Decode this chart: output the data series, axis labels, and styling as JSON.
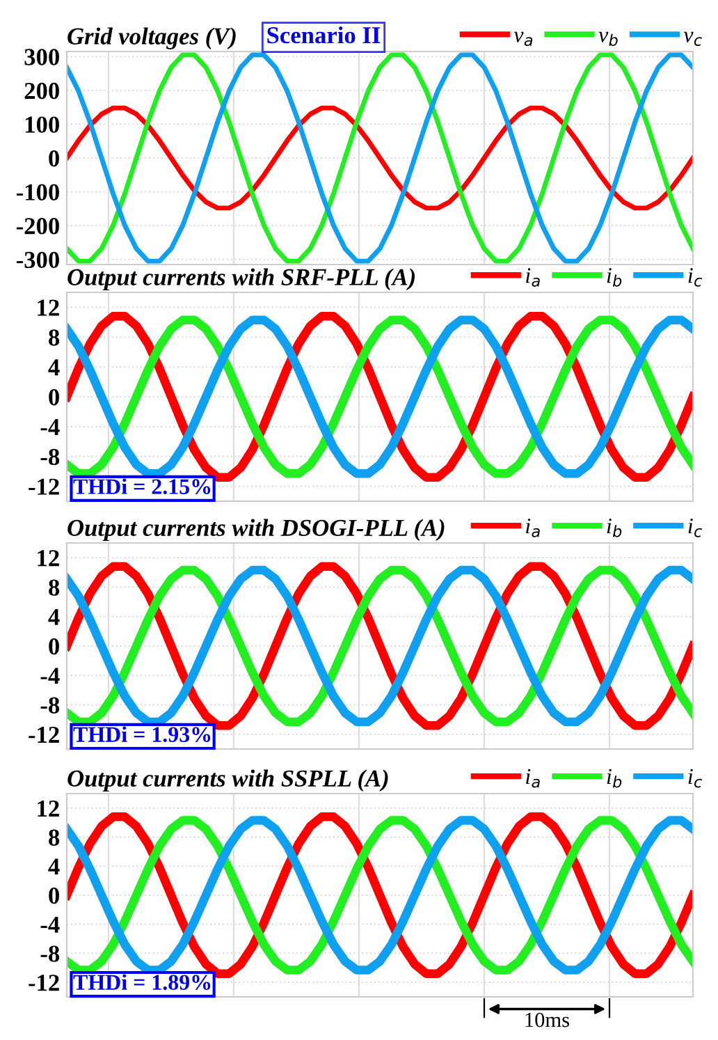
{
  "chart_data": [
    {
      "type": "line",
      "title": "Grid voltages (V)",
      "categories": [
        null,
        null,
        null,
        null,
        null,
        null,
        null,
        null,
        null,
        null,
        null,
        null,
        null,
        null,
        null,
        null,
        null,
        null,
        null,
        null,
        null,
        null,
        null,
        null,
        null,
        null,
        null,
        null,
        null,
        null,
        null,
        null,
        null,
        null,
        null,
        null,
        null,
        null,
        null,
        null,
        null,
        null,
        null,
        null,
        null,
        null,
        null,
        null,
        null,
        null,
        null,
        null,
        null,
        null,
        null
      ],
      "series": [
        {
          "name": "v$_{a}$",
          "color": "#ff0000",
          "values": [
            0,
            51,
            96,
            130,
            148,
            148,
            130,
            96,
            51,
            0,
            -51,
            -96,
            -130,
            -148,
            -148,
            -130,
            -96,
            -51,
            0,
            51,
            96,
            130,
            148,
            148,
            130,
            96,
            51,
            0,
            -51,
            -96,
            -130,
            -148,
            -148,
            -130,
            -96,
            -51,
            0,
            51,
            96,
            130,
            148,
            148,
            130,
            96,
            51,
            0,
            -51,
            -96,
            -130,
            -148,
            -148,
            -130,
            -96,
            -51,
            0
          ]
        },
        {
          "name": "v$_{b}$",
          "color": "#22ee22",
          "values": [
            -268,
            -305,
            -305,
            -268,
            -199,
            -106,
            0,
            106,
            199,
            268,
            305,
            305,
            268,
            199,
            106,
            0,
            -106,
            -199,
            -268,
            -305,
            -305,
            -268,
            -199,
            -106,
            0,
            106,
            199,
            268,
            305,
            305,
            268,
            199,
            106,
            0,
            -106,
            -199,
            -268,
            -305,
            -305,
            -268,
            -199,
            -106,
            0,
            106,
            199,
            268,
            305,
            305,
            268,
            199,
            106,
            0,
            -106,
            -199,
            -268
          ]
        },
        {
          "name": "v$_{c}$",
          "color": "#10a0f0",
          "values": [
            268,
            199,
            106,
            0,
            -106,
            -199,
            -268,
            -305,
            -305,
            -268,
            -199,
            -106,
            0,
            106,
            199,
            268,
            305,
            305,
            268,
            199,
            106,
            0,
            -106,
            -199,
            -268,
            -305,
            -305,
            -268,
            -199,
            -106,
            0,
            106,
            199,
            268,
            305,
            305,
            268,
            199,
            106,
            0,
            -106,
            -199,
            -268,
            -305,
            -305,
            -268,
            -199,
            -106,
            0,
            106,
            199,
            268,
            305,
            305,
            268
          ]
        }
      ],
      "ylim": [
        -315,
        315
      ],
      "yticks": [
        -300,
        -200,
        -100,
        0,
        100,
        200,
        300
      ],
      "grid": true,
      "legend": "top right",
      "annotations": [
        "Scenario II"
      ]
    },
    {
      "type": "line",
      "title": "Output currents with SRF-PLL (A)",
      "categories": [
        null,
        null,
        null,
        null,
        null,
        null,
        null,
        null,
        null,
        null,
        null,
        null,
        null,
        null,
        null,
        null,
        null,
        null,
        null,
        null,
        null,
        null,
        null,
        null,
        null,
        null,
        null,
        null,
        null,
        null,
        null,
        null,
        null,
        null,
        null,
        null,
        null,
        null,
        null,
        null,
        null,
        null,
        null,
        null,
        null,
        null,
        null,
        null,
        null,
        null,
        null,
        null,
        null,
        null,
        null
      ],
      "series": [
        {
          "name": "i$_{a}$",
          "color": "#ff0000",
          "values": [
            0,
            3.8,
            7.1,
            9.5,
            10.8,
            10.8,
            9.5,
            7.1,
            3.8,
            0,
            -3.8,
            -7.1,
            -9.5,
            -10.8,
            -10.8,
            -9.5,
            -7.1,
            -3.8,
            0,
            3.8,
            7.1,
            9.5,
            10.8,
            10.8,
            9.5,
            7.1,
            3.8,
            0,
            -3.8,
            -7.1,
            -9.5,
            -10.8,
            -10.8,
            -9.5,
            -7.1,
            -3.8,
            0,
            3.8,
            7.1,
            9.5,
            10.8,
            10.8,
            9.5,
            7.1,
            3.8,
            0,
            -3.8,
            -7.1,
            -9.5,
            -10.8,
            -10.8,
            -9.5,
            -7.1,
            -3.8,
            0
          ]
        },
        {
          "name": "i$_{b}$",
          "color": "#22ee22",
          "values": [
            -9.1,
            -10.3,
            -10.3,
            -9.1,
            -6.8,
            -3.6,
            0,
            3.6,
            6.8,
            9.1,
            10.3,
            10.3,
            9.1,
            6.8,
            3.6,
            0,
            -3.6,
            -6.8,
            -9.1,
            -10.3,
            -10.3,
            -9.1,
            -6.8,
            -3.6,
            0,
            3.6,
            6.8,
            9.1,
            10.3,
            10.3,
            9.1,
            6.8,
            3.6,
            0,
            -3.6,
            -6.8,
            -9.1,
            -10.3,
            -10.3,
            -9.1,
            -6.8,
            -3.6,
            0,
            3.6,
            6.8,
            9.1,
            10.3,
            10.3,
            9.1,
            6.8,
            3.6,
            0,
            -3.6,
            -6.8,
            -9.1
          ]
        },
        {
          "name": "i$_{c}$",
          "color": "#10a0f0",
          "values": [
            9.1,
            6.8,
            3.6,
            0,
            -3.6,
            -6.8,
            -9.1,
            -10.3,
            -10.3,
            -9.1,
            -6.8,
            -3.6,
            0,
            3.6,
            6.8,
            9.1,
            10.3,
            10.3,
            9.1,
            6.8,
            3.6,
            0,
            -3.6,
            -6.8,
            -9.1,
            -10.3,
            -10.3,
            -9.1,
            -6.8,
            -3.6,
            0,
            3.6,
            6.8,
            9.1,
            10.3,
            10.3,
            9.1,
            6.8,
            3.6,
            0,
            -3.6,
            -6.8,
            -9.1,
            -10.3,
            -10.3,
            -9.1,
            -6.8,
            -3.6,
            0,
            3.6,
            6.8,
            9.1,
            10.3,
            10.3,
            9.1
          ]
        }
      ],
      "ylim": [
        -14,
        14
      ],
      "yticks": [
        -12,
        -8,
        -4,
        0,
        4,
        8,
        12
      ],
      "grid": true,
      "legend": "top right",
      "annotations": [
        "THDi = 2.15%"
      ]
    },
    {
      "type": "line",
      "title": "Output currents with DSOGI-PLL (A)",
      "categories": [
        null,
        null,
        null,
        null,
        null,
        null,
        null,
        null,
        null,
        null,
        null,
        null,
        null,
        null,
        null,
        null,
        null,
        null,
        null,
        null,
        null,
        null,
        null,
        null,
        null,
        null,
        null,
        null,
        null,
        null,
        null,
        null,
        null,
        null,
        null,
        null,
        null,
        null,
        null,
        null,
        null,
        null,
        null,
        null,
        null,
        null,
        null,
        null,
        null,
        null,
        null,
        null,
        null,
        null,
        null
      ],
      "series": [
        {
          "name": "i$_{a}$",
          "color": "#ff0000",
          "values": [
            0,
            3.8,
            7.1,
            9.5,
            10.8,
            10.8,
            9.5,
            7.1,
            3.8,
            0,
            -3.8,
            -7.1,
            -9.5,
            -10.8,
            -10.8,
            -9.5,
            -7.1,
            -3.8,
            0,
            3.8,
            7.1,
            9.5,
            10.8,
            10.8,
            9.5,
            7.1,
            3.8,
            0,
            -3.8,
            -7.1,
            -9.5,
            -10.8,
            -10.8,
            -9.5,
            -7.1,
            -3.8,
            0,
            3.8,
            7.1,
            9.5,
            10.8,
            10.8,
            9.5,
            7.1,
            3.8,
            0,
            -3.8,
            -7.1,
            -9.5,
            -10.8,
            -10.8,
            -9.5,
            -7.1,
            -3.8,
            0
          ]
        },
        {
          "name": "i$_{b}$",
          "color": "#22ee22",
          "values": [
            -9.1,
            -10.3,
            -10.3,
            -9.1,
            -6.8,
            -3.6,
            0,
            3.6,
            6.8,
            9.1,
            10.3,
            10.3,
            9.1,
            6.8,
            3.6,
            0,
            -3.6,
            -6.8,
            -9.1,
            -10.3,
            -10.3,
            -9.1,
            -6.8,
            -3.6,
            0,
            3.6,
            6.8,
            9.1,
            10.3,
            10.3,
            9.1,
            6.8,
            3.6,
            0,
            -3.6,
            -6.8,
            -9.1,
            -10.3,
            -10.3,
            -9.1,
            -6.8,
            -3.6,
            0,
            3.6,
            6.8,
            9.1,
            10.3,
            10.3,
            9.1,
            6.8,
            3.6,
            0,
            -3.6,
            -6.8,
            -9.1
          ]
        },
        {
          "name": "i$_{c}$",
          "color": "#10a0f0",
          "values": [
            9.1,
            6.8,
            3.6,
            0,
            -3.6,
            -6.8,
            -9.1,
            -10.3,
            -10.3,
            -9.1,
            -6.8,
            -3.6,
            0,
            3.6,
            6.8,
            9.1,
            10.3,
            10.3,
            9.1,
            6.8,
            3.6,
            0,
            -3.6,
            -6.8,
            -9.1,
            -10.3,
            -10.3,
            -9.1,
            -6.8,
            -3.6,
            0,
            3.6,
            6.8,
            9.1,
            10.3,
            10.3,
            9.1,
            6.8,
            3.6,
            0,
            -3.6,
            -6.8,
            -9.1,
            -10.3,
            -10.3,
            -9.1,
            -6.8,
            -3.6,
            0,
            3.6,
            6.8,
            9.1,
            10.3,
            10.3,
            9.1
          ]
        }
      ],
      "ylim": [
        -14,
        14
      ],
      "yticks": [
        -12,
        -8,
        -4,
        0,
        4,
        8,
        12
      ],
      "grid": true,
      "legend": "top right",
      "annotations": [
        "THDi = 1.93%"
      ]
    },
    {
      "type": "line",
      "title": "Output currents with SSPLL (A)",
      "categories": [
        null,
        null,
        null,
        null,
        null,
        null,
        null,
        null,
        null,
        null,
        null,
        null,
        null,
        null,
        null,
        null,
        null,
        null,
        null,
        null,
        null,
        null,
        null,
        null,
        null,
        null,
        null,
        null,
        null,
        null,
        null,
        null,
        null,
        null,
        null,
        null,
        null,
        null,
        null,
        null,
        null,
        null,
        null,
        null,
        null,
        null,
        null,
        null,
        null,
        null,
        null,
        null,
        null,
        null,
        null
      ],
      "series": [
        {
          "name": "i$_{a}$",
          "color": "#ff0000",
          "values": [
            0,
            3.8,
            7.1,
            9.5,
            10.8,
            10.8,
            9.5,
            7.1,
            3.8,
            0,
            -3.8,
            -7.1,
            -9.5,
            -10.8,
            -10.8,
            -9.5,
            -7.1,
            -3.8,
            0,
            3.8,
            7.1,
            9.5,
            10.8,
            10.8,
            9.5,
            7.1,
            3.8,
            0,
            -3.8,
            -7.1,
            -9.5,
            -10.8,
            -10.8,
            -9.5,
            -7.1,
            -3.8,
            0,
            3.8,
            7.1,
            9.5,
            10.8,
            10.8,
            9.5,
            7.1,
            3.8,
            0,
            -3.8,
            -7.1,
            -9.5,
            -10.8,
            -10.8,
            -9.5,
            -7.1,
            -3.8,
            0
          ]
        },
        {
          "name": "i$_{b}$",
          "color": "#22ee22",
          "values": [
            -9.1,
            -10.3,
            -10.3,
            -9.1,
            -6.8,
            -3.6,
            0,
            3.6,
            6.8,
            9.1,
            10.3,
            10.3,
            9.1,
            6.8,
            3.6,
            0,
            -3.6,
            -6.8,
            -9.1,
            -10.3,
            -10.3,
            -9.1,
            -6.8,
            -3.6,
            0,
            3.6,
            6.8,
            9.1,
            10.3,
            10.3,
            9.1,
            6.8,
            3.6,
            0,
            -3.6,
            -6.8,
            -9.1,
            -10.3,
            -10.3,
            -9.1,
            -6.8,
            -3.6,
            0,
            3.6,
            6.8,
            9.1,
            10.3,
            10.3,
            9.1,
            6.8,
            3.6,
            0,
            -3.6,
            -6.8,
            -9.1
          ]
        },
        {
          "name": "i$_{c}$",
          "color": "#10a0f0",
          "values": [
            9.1,
            6.8,
            3.6,
            0,
            -3.6,
            -6.8,
            -9.1,
            -10.3,
            -10.3,
            -9.1,
            -6.8,
            -3.6,
            0,
            3.6,
            6.8,
            9.1,
            10.3,
            10.3,
            9.1,
            6.8,
            3.6,
            0,
            -3.6,
            -6.8,
            -9.1,
            -10.3,
            -10.3,
            -9.1,
            -6.8,
            -3.6,
            0,
            3.6,
            6.8,
            9.1,
            10.3,
            10.3,
            9.1,
            6.8,
            3.6,
            0,
            -3.6,
            -6.8,
            -9.1,
            -10.3,
            -10.3,
            -9.1,
            -6.8,
            -3.6,
            0,
            3.6,
            6.8,
            9.1,
            10.3,
            10.3,
            9.1
          ]
        }
      ],
      "ylim": [
        -14,
        14
      ],
      "yticks": [
        -12,
        -8,
        -4,
        0,
        4,
        8,
        12
      ],
      "grid": true,
      "legend": "top right",
      "annotations": [
        "THDi = 1.89%",
        "10ms"
      ]
    }
  ]
}
